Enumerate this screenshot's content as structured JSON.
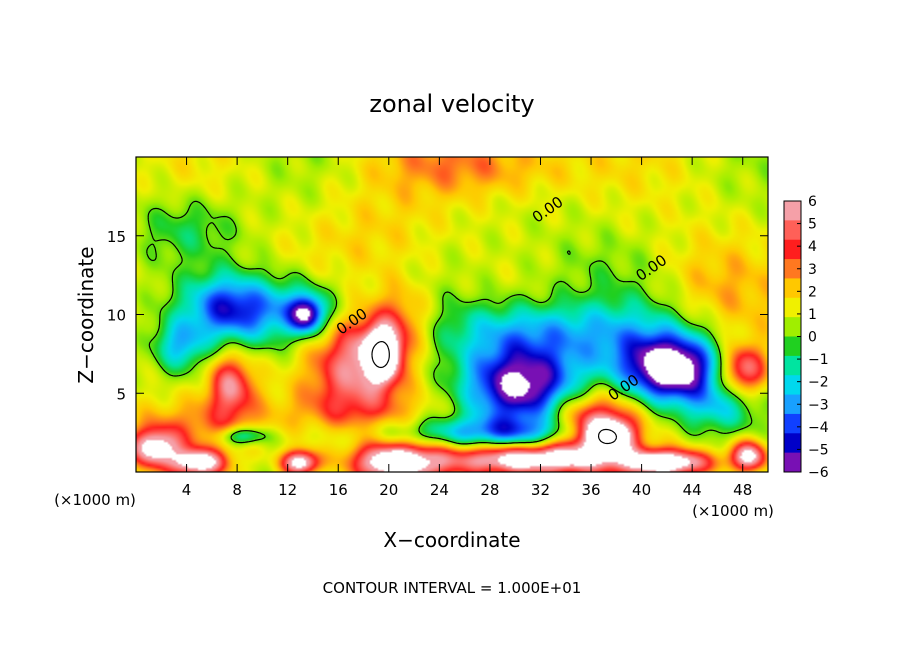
{
  "chart_data": {
    "type": "heatmap",
    "title": "zonal velocity",
    "xlabel": "X−coordinate",
    "ylabel": "Z−coordinate",
    "x_unit_left": "(×1000 m)",
    "x_unit_right": "(×1000 m)",
    "footer": "CONTOUR INTERVAL = 1.000E+01",
    "xlim": [
      0,
      50
    ],
    "ylim": [
      0,
      20
    ],
    "x_ticks": [
      4,
      8,
      12,
      16,
      20,
      24,
      28,
      32,
      36,
      40,
      44,
      48
    ],
    "y_ticks": [
      5,
      10,
      15
    ],
    "contour_labels": [
      {
        "text": "0.00",
        "x": 32.8,
        "y": 16.4
      },
      {
        "text": "0.00",
        "x": 41.0,
        "y": 12.7
      },
      {
        "text": "0.00",
        "x": 17.3,
        "y": 9.3
      },
      {
        "text": "0.00",
        "x": 38.8,
        "y": 5.1
      }
    ],
    "colorbar": {
      "ticks": [
        6,
        5,
        4,
        3,
        2,
        1,
        0,
        -1,
        -2,
        -3,
        -4,
        -5,
        -6
      ],
      "colors": [
        "#f5a0a8",
        "#ff6058",
        "#ff1e1e",
        "#ff7820",
        "#ffc800",
        "#f0f000",
        "#a0ee00",
        "#20d020",
        "#00e4a0",
        "#00d8ee",
        "#18a0ff",
        "#1040ff",
        "#0000c8",
        "#7810b4"
      ],
      "over_color": "#ffffff",
      "under_color": "#ffffff"
    },
    "field_features": [
      {
        "x": 11.5,
        "y": 10.2,
        "sx": 5.5,
        "sy": 2.2,
        "v": -4.0
      },
      {
        "x": 7.0,
        "y": 10.5,
        "sx": 3.0,
        "sy": 2.0,
        "v": -3.2
      },
      {
        "x": 13.5,
        "y": 10.0,
        "sx": 1.3,
        "sy": 1.1,
        "v": -5.5
      },
      {
        "x": 3.5,
        "y": 8.0,
        "sx": 2.0,
        "sy": 1.6,
        "v": -3.0
      },
      {
        "x": 7.5,
        "y": 5.5,
        "sx": 1.8,
        "sy": 2.0,
        "v": 4.2
      },
      {
        "x": 8.5,
        "y": 2.3,
        "sx": 1.8,
        "sy": 0.6,
        "v": -3.5
      },
      {
        "x": 17.5,
        "y": 7.2,
        "sx": 3.5,
        "sy": 3.2,
        "v": 4.5
      },
      {
        "x": 19.5,
        "y": 7.5,
        "sx": 1.3,
        "sy": 1.6,
        "v": 6.8
      },
      {
        "x": 21.0,
        "y": 9.5,
        "sx": 2.5,
        "sy": 2.5,
        "v": 2.5
      },
      {
        "x": 20.5,
        "y": 0.6,
        "sx": 3.5,
        "sy": 1.2,
        "v": 6.5
      },
      {
        "x": 16.5,
        "y": 3.8,
        "sx": 6.0,
        "sy": 1.8,
        "v": 1.8
      },
      {
        "x": 5.0,
        "y": 3.0,
        "sx": 6.0,
        "sy": 1.6,
        "v": 1.5
      },
      {
        "x": 1.5,
        "y": 1.5,
        "sx": 2.0,
        "sy": 1.2,
        "v": 5.5
      },
      {
        "x": 13.0,
        "y": 0.6,
        "sx": 1.5,
        "sy": 0.8,
        "v": 6.5
      },
      {
        "x": 5.0,
        "y": 0.6,
        "sx": 2.0,
        "sy": 0.8,
        "v": 6.0
      },
      {
        "x": 30.5,
        "y": 5.5,
        "sx": 4.5,
        "sy": 2.5,
        "v": -7.5
      },
      {
        "x": 31.0,
        "y": 9.0,
        "sx": 7.0,
        "sy": 2.0,
        "v": -3.3
      },
      {
        "x": 42.5,
        "y": 6.5,
        "sx": 3.5,
        "sy": 2.0,
        "v": -7.5
      },
      {
        "x": 40.0,
        "y": 8.0,
        "sx": 6.0,
        "sy": 3.0,
        "v": -2.5
      },
      {
        "x": 36.0,
        "y": 3.0,
        "sx": 3.5,
        "sy": 2.2,
        "v": 5.0
      },
      {
        "x": 37.5,
        "y": 2.3,
        "sx": 1.8,
        "sy": 1.0,
        "v": 7.0
      },
      {
        "x": 28.0,
        "y": 2.5,
        "sx": 9.0,
        "sy": 1.0,
        "v": -3.5
      },
      {
        "x": 31.0,
        "y": 0.8,
        "sx": 6.0,
        "sy": 1.0,
        "v": 7.0
      },
      {
        "x": 42.0,
        "y": 0.6,
        "sx": 3.5,
        "sy": 0.8,
        "v": 6.5
      },
      {
        "x": 48.0,
        "y": 6.5,
        "sx": 1.8,
        "sy": 1.5,
        "v": 4.5
      },
      {
        "x": 46.0,
        "y": 4.0,
        "sx": 3.0,
        "sy": 1.5,
        "v": -2.5
      },
      {
        "x": 48.5,
        "y": 1.0,
        "sx": 1.5,
        "sy": 1.0,
        "v": 6.0
      },
      {
        "x": 45.0,
        "y": 11.5,
        "sx": 5.0,
        "sy": 3.5,
        "v": 1.4
      },
      {
        "x": 28.0,
        "y": 19.5,
        "sx": 8.0,
        "sy": 2.0,
        "v": 2.0
      },
      {
        "x": 4.0,
        "y": 15.5,
        "sx": 4.0,
        "sy": 2.0,
        "v": -1.6
      },
      {
        "x": 19.0,
        "y": 15.0,
        "sx": 5.0,
        "sy": 3.0,
        "v": 0.9
      },
      {
        "x": 35.0,
        "y": 13.0,
        "sx": 6.0,
        "sy": 2.5,
        "v": -0.8
      }
    ]
  }
}
